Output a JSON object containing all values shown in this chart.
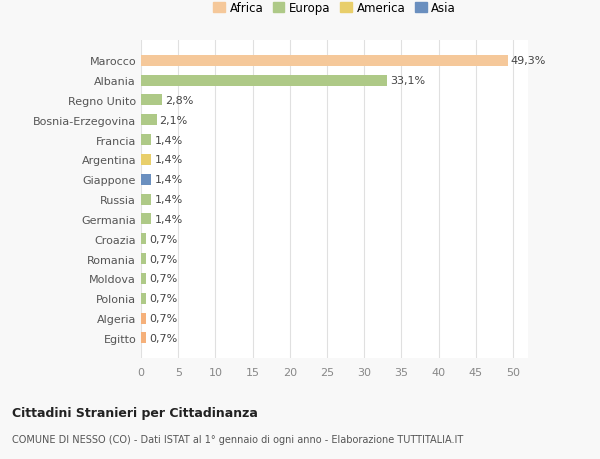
{
  "categories": [
    "Egitto",
    "Algeria",
    "Polonia",
    "Moldova",
    "Romania",
    "Croazia",
    "Germania",
    "Russia",
    "Giappone",
    "Argentina",
    "Francia",
    "Bosnia-Erzegovina",
    "Regno Unito",
    "Albania",
    "Marocco"
  ],
  "values": [
    0.7,
    0.7,
    0.7,
    0.7,
    0.7,
    0.7,
    1.4,
    1.4,
    1.4,
    1.4,
    1.4,
    2.1,
    2.8,
    33.1,
    49.3
  ],
  "colors": [
    "#f5b07a",
    "#f5b07a",
    "#aec987",
    "#aec987",
    "#aec987",
    "#aec987",
    "#aec987",
    "#aec987",
    "#6a8fbf",
    "#e8ce6a",
    "#aec987",
    "#aec987",
    "#aec987",
    "#aec987",
    "#f5c89a"
  ],
  "labels": [
    "0,7%",
    "0,7%",
    "0,7%",
    "0,7%",
    "0,7%",
    "0,7%",
    "1,4%",
    "1,4%",
    "1,4%",
    "1,4%",
    "1,4%",
    "2,1%",
    "2,8%",
    "33,1%",
    "49,3%"
  ],
  "xlim": [
    0,
    52
  ],
  "xticks": [
    0,
    5,
    10,
    15,
    20,
    25,
    30,
    35,
    40,
    45,
    50
  ],
  "legend_items": [
    {
      "label": "Africa",
      "color": "#f5c89a"
    },
    {
      "label": "Europa",
      "color": "#aec987"
    },
    {
      "label": "America",
      "color": "#e8ce6a"
    },
    {
      "label": "Asia",
      "color": "#6a8fbf"
    }
  ],
  "title": "Cittadini Stranieri per Cittadinanza",
  "subtitle": "COMUNE DI NESSO (CO) - Dati ISTAT al 1° gennaio di ogni anno - Elaborazione TUTTITALIA.IT",
  "background_color": "#f8f8f8",
  "plot_background": "#ffffff",
  "grid_color": "#e0e0e0",
  "label_fontsize": 8,
  "bar_height": 0.55
}
